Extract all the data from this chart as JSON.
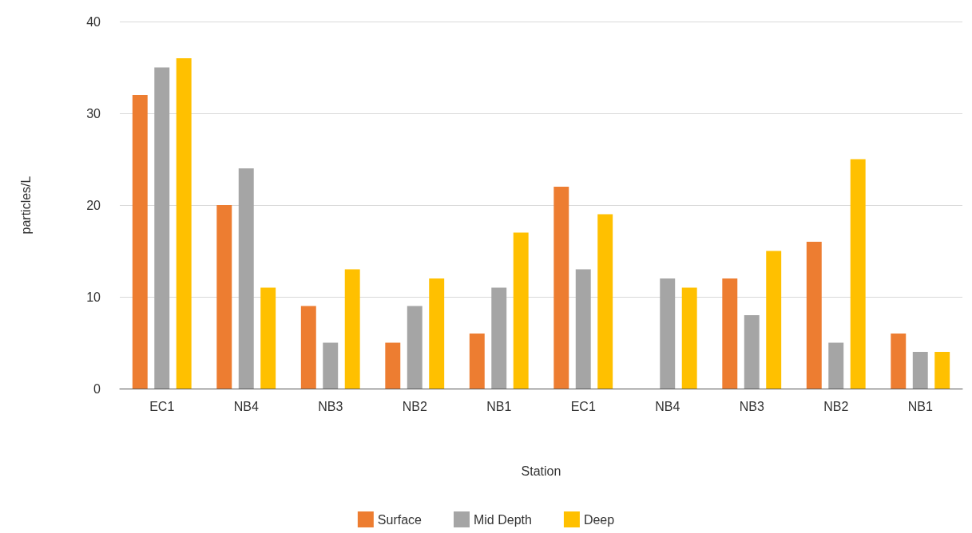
{
  "chart_data": {
    "type": "bar",
    "xlabel": "Station",
    "ylabel": "particles/L",
    "categories": [
      "EC1",
      "NB4",
      "NB3",
      "NB2",
      "NB1",
      "EC1",
      "NB4",
      "NB3",
      "NB2",
      "NB1"
    ],
    "series": [
      {
        "name": "Surface",
        "color": "#ed7d31",
        "values": [
          32,
          20,
          9,
          5,
          6,
          22,
          null,
          12,
          16,
          6
        ]
      },
      {
        "name": "Mid Depth",
        "color": "#a5a5a5",
        "values": [
          35,
          24,
          5,
          9,
          11,
          13,
          12,
          8,
          5,
          4
        ]
      },
      {
        "name": "Deep",
        "color": "#ffc000",
        "values": [
          36,
          11,
          13,
          12,
          17,
          19,
          11,
          15,
          25,
          4
        ]
      }
    ],
    "ylim": [
      0,
      40
    ],
    "yticks": [
      0,
      10,
      20,
      30,
      40
    ],
    "grid": "y",
    "legend": "bottom"
  }
}
